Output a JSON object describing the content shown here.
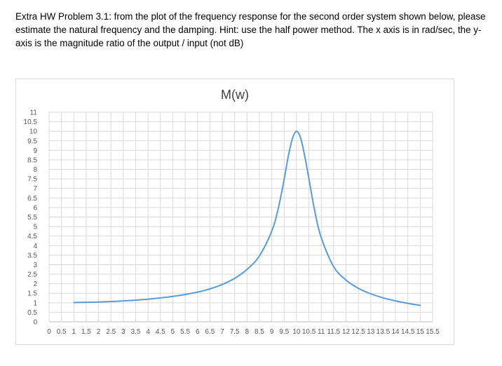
{
  "problem_text": "Extra HW Problem 3.1: from the plot of the frequency response for the second order system shown below, please estimate the natural frequency and the damping. Hint: use the half power method. The x axis is in rad/sec, the y-axis is the magnitude ratio of the output / input (not dB)",
  "chart_data": {
    "type": "line",
    "title": "M(w)",
    "xlabel": "",
    "ylabel": "",
    "xlim": [
      0,
      15.5
    ],
    "ylim": [
      0,
      11
    ],
    "grid": true,
    "x_tick_labels": [
      "0",
      "0.5",
      "1",
      "1.5",
      "2",
      "2.5",
      "3",
      "3.5",
      "4",
      "4.5",
      "5",
      "5.5",
      "6",
      "6.5",
      "7",
      "7.5",
      "8",
      "8.5",
      "9",
      "9.5",
      "10",
      "10.5",
      "11",
      "11.5",
      "12",
      "12.5",
      "13",
      "13.5",
      "14",
      "14.5",
      "15",
      "15.5"
    ],
    "y_tick_labels": [
      "0",
      "0.5",
      "1",
      "1.5",
      "2",
      "2.5",
      "3",
      "3.5",
      "4",
      "4.5",
      "5",
      "5.5",
      "6",
      "6.5",
      "7",
      "7.5",
      "8",
      "8.5",
      "9",
      "9.5",
      "10",
      "10.5",
      "11"
    ],
    "series": [
      {
        "color": "#5B9BD5",
        "x": [
          1,
          2,
          3,
          4,
          5,
          6,
          6.5,
          7,
          7.5,
          8,
          8.5,
          9,
          9.25,
          9.5,
          9.65,
          9.8,
          9.9,
          10,
          10.1,
          10.2,
          10.35,
          10.5,
          10.75,
          11,
          11.5,
          12,
          12.5,
          13,
          13.5,
          14,
          14.5,
          15
        ],
        "y": [
          1.01,
          1.04,
          1.1,
          1.19,
          1.33,
          1.56,
          1.73,
          1.96,
          2.28,
          2.75,
          3.46,
          4.76,
          5.87,
          7.47,
          8.58,
          9.45,
          9.84,
          10.0,
          9.86,
          9.48,
          8.58,
          7.52,
          5.72,
          4.42,
          2.9,
          2.19,
          1.76,
          1.47,
          1.26,
          1.1,
          0.97,
          0.86
        ]
      }
    ]
  }
}
